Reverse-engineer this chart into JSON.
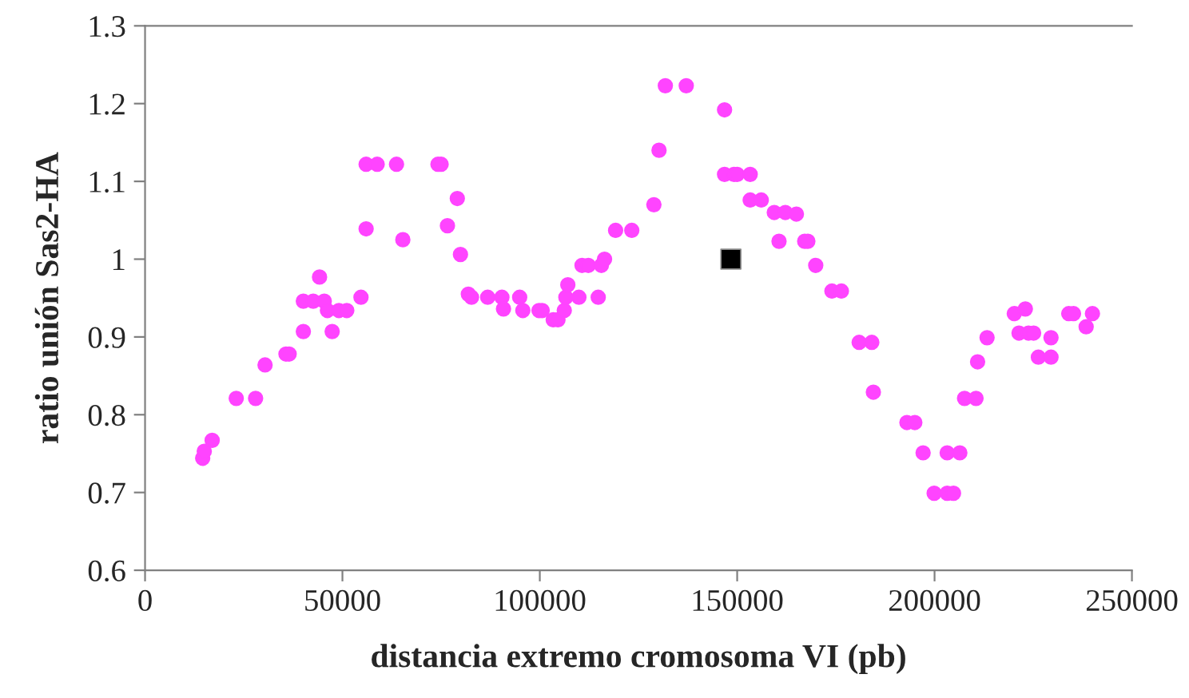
{
  "chart_data": {
    "type": "scatter",
    "xlabel": "distancia extremo cromosoma VI (pb)",
    "ylabel": "ratio unión Sas2-HA",
    "xlim": [
      0,
      250000
    ],
    "xticks": [
      0,
      50000,
      100000,
      150000,
      200000,
      250000
    ],
    "ylim": [
      0.6,
      1.3
    ],
    "yticks": [
      0.6,
      0.7,
      0.8,
      0.9,
      1,
      1.1,
      1.2,
      1.3
    ],
    "grid": false,
    "legend": false,
    "series": [
      {
        "color": "#ff44ff",
        "marker": "circle",
        "x": [
          14600,
          15000,
          17000,
          23100,
          28000,
          30400,
          35700,
          36500,
          40100,
          47400,
          40100,
          42600,
          45400,
          44200,
          46200,
          49100,
          51100,
          54700,
          56000,
          56000,
          58800,
          63700,
          65300,
          74200,
          75000,
          79100,
          76600,
          79900,
          81900,
          82700,
          86800,
          90400,
          90800,
          94900,
          95700,
          99800,
          100600,
          103400,
          104600,
          106200,
          106600,
          107100,
          109900,
          110700,
          112300,
          114800,
          115600,
          116400,
          119200,
          123300,
          128900,
          130200,
          131800,
          137100,
          146800,
          146800,
          149200,
          150000,
          153300,
          153300,
          156100,
          159400,
          162200,
          165000,
          160600,
          167100,
          167900,
          169900,
          174000,
          176400,
          180900,
          184100,
          184500,
          193000,
          195000,
          197100,
          199900,
          203200,
          203200,
          204800,
          206400,
          207600,
          210500,
          210900,
          213300,
          220200,
          223000,
          221400,
          223800,
          225100,
          226300,
          229500,
          229500,
          234000,
          235200,
          238400,
          240000
        ],
        "values": [
          0.744,
          0.753,
          0.767,
          0.821,
          0.821,
          0.864,
          0.878,
          0.878,
          0.907,
          0.907,
          0.946,
          0.946,
          0.946,
          0.977,
          0.934,
          0.934,
          0.934,
          0.951,
          1.039,
          1.122,
          1.122,
          1.122,
          1.025,
          1.122,
          1.122,
          1.078,
          1.043,
          1.006,
          0.955,
          0.951,
          0.951,
          0.951,
          0.936,
          0.951,
          0.934,
          0.934,
          0.934,
          0.922,
          0.922,
          0.934,
          0.951,
          0.967,
          0.951,
          0.992,
          0.992,
          0.951,
          0.992,
          1.0,
          1.037,
          1.037,
          1.07,
          1.14,
          1.223,
          1.223,
          1.192,
          1.109,
          1.109,
          1.109,
          1.109,
          1.076,
          1.076,
          1.06,
          1.06,
          1.058,
          1.023,
          1.023,
          1.023,
          0.992,
          0.959,
          0.959,
          0.893,
          0.893,
          0.829,
          0.79,
          0.79,
          0.751,
          0.699,
          0.751,
          0.699,
          0.699,
          0.751,
          0.821,
          0.821,
          0.868,
          0.899,
          0.93,
          0.936,
          0.905,
          0.905,
          0.905,
          0.874,
          0.874,
          0.899,
          0.93,
          0.93,
          0.913,
          0.93
        ]
      },
      {
        "color": "#000000",
        "marker": "square",
        "x": [
          148400
        ],
        "values": [
          1.0
        ]
      }
    ]
  }
}
